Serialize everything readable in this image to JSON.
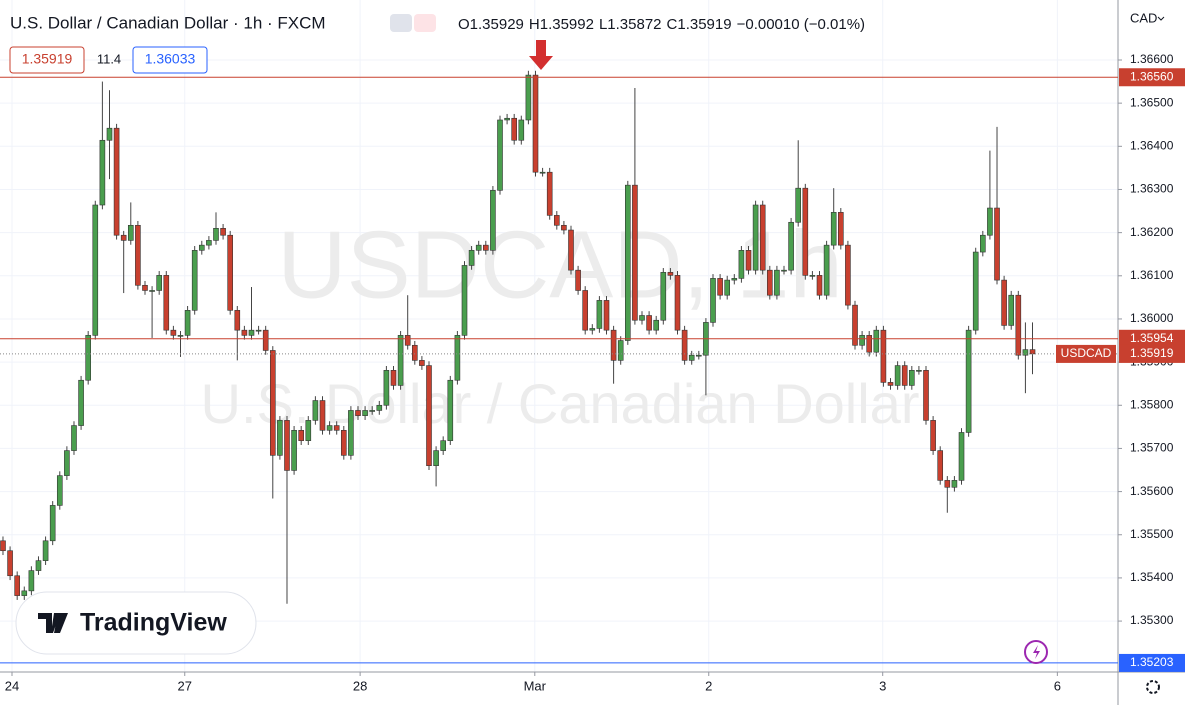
{
  "header": {
    "title": "U.S. Dollar / Canadian Dollar · 1h · FXCM",
    "ohlc": [
      "O1.35929",
      "H1.35992",
      "L1.35872",
      "C1.35919",
      "−0.00010 (−0.01%)"
    ],
    "buttons": [
      "1.35919",
      "11.4",
      "1.36033"
    ],
    "currency": "CAD"
  },
  "watermark": {
    "symbol": "USDCAD, 1h",
    "description": "U.S. Dollar / Canadian Dollar"
  },
  "logo": "TradingView",
  "chart_data": {
    "type": "candlestick",
    "up_color": "#4a9e4e",
    "down_color": "#c8402f",
    "xlim": [
      -0.42,
      157.04
    ],
    "ylim": [
      1.35182,
      1.36739
    ],
    "xticks": [
      {
        "value": 1.27,
        "label": "24"
      },
      {
        "value": 25.6,
        "label": "27"
      },
      {
        "value": 50.3,
        "label": "28"
      },
      {
        "value": 74.9,
        "label": "Mar"
      },
      {
        "value": 99.4,
        "label": "2"
      },
      {
        "value": 123.9,
        "label": "3"
      },
      {
        "value": 148.5,
        "label": "6"
      }
    ],
    "yticks": [
      {
        "value": 1.353,
        "label": "1.35300"
      },
      {
        "value": 1.354,
        "label": "1.35400"
      },
      {
        "value": 1.355,
        "label": "1.35500"
      },
      {
        "value": 1.356,
        "label": "1.35600"
      },
      {
        "value": 1.357,
        "label": "1.35700"
      },
      {
        "value": 1.358,
        "label": "1.35800"
      },
      {
        "value": 1.359,
        "label": "1.35900"
      },
      {
        "value": 1.36,
        "label": "1.36000"
      },
      {
        "value": 1.361,
        "label": "1.36100"
      },
      {
        "value": 1.362,
        "label": "1.36200"
      },
      {
        "value": 1.363,
        "label": "1.36300"
      },
      {
        "value": 1.364,
        "label": "1.36400"
      },
      {
        "value": 1.365,
        "label": "1.36500"
      },
      {
        "value": 1.366,
        "label": "1.36600"
      }
    ],
    "grid": true,
    "levels": [
      {
        "value": 1.3656,
        "label": "1.36560",
        "color": "#c8402f"
      },
      {
        "value": 1.35954,
        "label": "1.35954",
        "color": "#c8402f"
      },
      {
        "value": 1.35203,
        "label": "1.35203",
        "color": "#2962ff"
      }
    ],
    "last_price": {
      "name": "USDCAD",
      "value": 1.35919,
      "label": "1.35919",
      "color": "#c8402f"
    },
    "x": [
      0,
      1,
      2,
      3,
      4,
      5,
      6,
      7,
      8,
      9,
      10,
      11,
      12,
      13,
      14,
      15,
      16,
      17,
      18,
      19,
      20,
      21,
      22,
      23,
      24,
      25,
      26,
      27,
      28,
      29,
      30,
      31,
      32,
      33,
      34,
      35,
      36,
      37,
      38,
      39,
      40,
      41,
      42,
      43,
      44,
      45,
      46,
      47,
      48,
      49,
      50,
      51,
      52,
      53,
      54,
      55,
      56,
      57,
      58,
      59,
      60,
      61,
      62,
      63,
      64,
      65,
      66,
      67,
      68,
      69,
      70,
      71,
      72,
      73,
      74,
      75,
      76,
      77,
      78,
      79,
      80,
      81,
      82,
      83,
      84,
      85,
      86,
      87,
      88,
      89,
      90,
      91,
      92,
      93,
      94,
      95,
      96,
      97,
      98,
      99,
      100,
      101,
      102,
      103,
      104,
      105,
      106,
      107,
      108,
      109,
      110,
      111,
      112,
      113,
      114,
      115,
      116,
      117,
      118,
      119,
      120,
      121,
      122,
      123,
      124,
      125,
      126,
      127,
      128,
      129,
      130,
      131,
      132,
      133,
      134,
      135,
      136,
      137,
      138,
      139,
      140,
      141,
      142,
      143,
      144,
      145
    ],
    "open": [
      1.35486,
      1.35463,
      1.35405,
      1.35359,
      1.3537,
      1.35417,
      1.3544,
      1.35486,
      1.35568,
      1.35637,
      1.35695,
      1.35753,
      1.35858,
      1.35962,
      1.36264,
      1.36414,
      1.36442,
      1.36194,
      1.36182,
      1.36217,
      1.36078,
      1.36066,
      1.36066,
      1.36101,
      1.35974,
      1.35962,
      1.35962,
      1.3602,
      1.36159,
      1.36171,
      1.36182,
      1.3621,
      1.36194,
      1.3602,
      1.35974,
      1.35962,
      1.35974,
      1.35974,
      1.35927,
      1.35684,
      1.35765,
      1.35649,
      1.35742,
      1.35718,
      1.35765,
      1.35811,
      1.35742,
      1.35753,
      1.35742,
      1.35684,
      1.35788,
      1.35776,
      1.35788,
      1.35788,
      1.358,
      1.35881,
      1.35846,
      1.35962,
      1.35939,
      1.35904,
      1.35892,
      1.3566,
      1.35695,
      1.35718,
      1.35858,
      1.35962,
      1.36124,
      1.36159,
      1.36171,
      1.36159,
      1.36298,
      1.36461,
      1.36465,
      1.36414,
      1.36461,
      1.36565,
      1.3634,
      1.3634,
      1.3624,
      1.36217,
      1.36206,
      1.36113,
      1.36066,
      1.35974,
      1.35978,
      1.36043,
      1.35974,
      1.35904,
      1.3595,
      1.3631,
      1.35997,
      1.36008,
      1.35974,
      1.35997,
      1.36108,
      1.36101,
      1.35974,
      1.35904,
      1.35916,
      1.35916,
      1.35992,
      1.36094,
      1.36055,
      1.3609,
      1.36094,
      1.36159,
      1.36113,
      1.36264,
      1.36113,
      1.36055,
      1.36113,
      1.36113,
      1.36224,
      1.36303,
      1.36101,
      1.36101,
      1.36055,
      1.36171,
      1.36247,
      1.36171,
      1.36032,
      1.35939,
      1.35962,
      1.35923,
      1.35974,
      1.35853,
      1.35846,
      1.35892,
      1.35846,
      1.35881,
      1.35881,
      1.35765,
      1.35695,
      1.35626,
      1.3561,
      1.35626,
      1.35737,
      1.35974,
      1.36155,
      1.36194,
      1.36257,
      1.3609,
      1.35985,
      1.36055,
      1.35916,
      1.35929
    ],
    "high": [
      1.35496,
      1.35473,
      1.35415,
      1.3538,
      1.35427,
      1.3545,
      1.35496,
      1.35578,
      1.35647,
      1.35705,
      1.35763,
      1.35868,
      1.35972,
      1.36274,
      1.3655,
      1.3653,
      1.36452,
      1.36204,
      1.3627,
      1.36227,
      1.36088,
      1.36076,
      1.36111,
      1.36111,
      1.35984,
      1.35972,
      1.3603,
      1.36169,
      1.36181,
      1.36192,
      1.36247,
      1.3622,
      1.36204,
      1.3603,
      1.35984,
      1.36074,
      1.35984,
      1.35984,
      1.35937,
      1.35775,
      1.35775,
      1.35752,
      1.35752,
      1.35775,
      1.35821,
      1.35821,
      1.35763,
      1.35763,
      1.35752,
      1.35798,
      1.35798,
      1.35798,
      1.35798,
      1.3581,
      1.35891,
      1.35891,
      1.35972,
      1.36055,
      1.35949,
      1.35914,
      1.35902,
      1.35705,
      1.35728,
      1.35868,
      1.35972,
      1.36134,
      1.36169,
      1.36181,
      1.36181,
      1.36308,
      1.36471,
      1.36475,
      1.36475,
      1.36471,
      1.36575,
      1.36575,
      1.3635,
      1.3635,
      1.3625,
      1.36227,
      1.36216,
      1.36123,
      1.36076,
      1.35988,
      1.36053,
      1.36053,
      1.35984,
      1.3596,
      1.3632,
      1.36535,
      1.36018,
      1.36018,
      1.36007,
      1.36118,
      1.36118,
      1.36111,
      1.35984,
      1.35926,
      1.35926,
      1.36002,
      1.36104,
      1.36104,
      1.361,
      1.36104,
      1.36169,
      1.36169,
      1.36274,
      1.36274,
      1.36123,
      1.36123,
      1.36123,
      1.36234,
      1.36414,
      1.36313,
      1.36111,
      1.36111,
      1.36181,
      1.36303,
      1.36257,
      1.36181,
      1.36042,
      1.35972,
      1.35972,
      1.35984,
      1.35984,
      1.35863,
      1.35902,
      1.35902,
      1.35891,
      1.35891,
      1.35891,
      1.35775,
      1.35705,
      1.35636,
      1.35636,
      1.35747,
      1.35984,
      1.36165,
      1.36204,
      1.3639,
      1.36445,
      1.361,
      1.36065,
      1.36065,
      1.35992,
      1.35992
    ],
    "low": [
      1.35453,
      1.35395,
      1.35349,
      1.35349,
      1.3536,
      1.35407,
      1.3543,
      1.35476,
      1.35558,
      1.35627,
      1.35685,
      1.35743,
      1.35848,
      1.35952,
      1.36254,
      1.36324,
      1.36184,
      1.3606,
      1.36172,
      1.36068,
      1.36056,
      1.35956,
      1.36056,
      1.35964,
      1.35952,
      1.35912,
      1.35952,
      1.3601,
      1.36149,
      1.36161,
      1.36172,
      1.36184,
      1.3601,
      1.35904,
      1.35952,
      1.35952,
      1.35964,
      1.35917,
      1.35584,
      1.35674,
      1.3534,
      1.35639,
      1.35708,
      1.35708,
      1.35755,
      1.35732,
      1.35732,
      1.35732,
      1.35674,
      1.35674,
      1.35766,
      1.35766,
      1.35778,
      1.35778,
      1.3579,
      1.35836,
      1.35836,
      1.35929,
      1.35894,
      1.35882,
      1.3565,
      1.35612,
      1.35685,
      1.35708,
      1.35848,
      1.35952,
      1.36114,
      1.36149,
      1.36149,
      1.36149,
      1.36288,
      1.36451,
      1.36404,
      1.36404,
      1.36451,
      1.3633,
      1.3633,
      1.3623,
      1.36207,
      1.36196,
      1.36103,
      1.36056,
      1.35964,
      1.35964,
      1.35968,
      1.35964,
      1.3585,
      1.35894,
      1.3594,
      1.35987,
      1.35987,
      1.35964,
      1.35964,
      1.35987,
      1.36091,
      1.35964,
      1.35894,
      1.35894,
      1.35906,
      1.35823,
      1.35982,
      1.36045,
      1.36045,
      1.3608,
      1.36084,
      1.36103,
      1.36103,
      1.36103,
      1.36045,
      1.36045,
      1.36103,
      1.36103,
      1.36214,
      1.36091,
      1.36091,
      1.36045,
      1.36045,
      1.36161,
      1.36161,
      1.36022,
      1.35929,
      1.35929,
      1.35913,
      1.35913,
      1.35843,
      1.35836,
      1.35836,
      1.35836,
      1.35836,
      1.35871,
      1.35755,
      1.35685,
      1.35616,
      1.35551,
      1.356,
      1.35616,
      1.35727,
      1.35964,
      1.36145,
      1.36184,
      1.3608,
      1.35975,
      1.35975,
      1.35906,
      1.35828,
      1.35872
    ],
    "close": [
      1.35463,
      1.35405,
      1.35359,
      1.3537,
      1.35417,
      1.3544,
      1.35486,
      1.35568,
      1.35637,
      1.35695,
      1.35753,
      1.35858,
      1.35962,
      1.36264,
      1.36414,
      1.36442,
      1.36194,
      1.36182,
      1.36217,
      1.36078,
      1.36066,
      1.36066,
      1.36101,
      1.35974,
      1.35962,
      1.35962,
      1.3602,
      1.36159,
      1.36171,
      1.36182,
      1.3621,
      1.36194,
      1.3602,
      1.35974,
      1.35962,
      1.35974,
      1.35974,
      1.35927,
      1.35684,
      1.35765,
      1.35649,
      1.35742,
      1.35718,
      1.35765,
      1.35811,
      1.35742,
      1.35753,
      1.35742,
      1.35684,
      1.35788,
      1.35776,
      1.35788,
      1.35788,
      1.358,
      1.35881,
      1.35846,
      1.35962,
      1.35939,
      1.35904,
      1.35892,
      1.3566,
      1.35695,
      1.35718,
      1.35858,
      1.35962,
      1.36124,
      1.36159,
      1.36171,
      1.36159,
      1.36298,
      1.36461,
      1.36465,
      1.36414,
      1.36461,
      1.36565,
      1.3634,
      1.3634,
      1.3624,
      1.36217,
      1.36206,
      1.36113,
      1.36066,
      1.35974,
      1.35978,
      1.36043,
      1.35974,
      1.35904,
      1.3595,
      1.3631,
      1.35997,
      1.36008,
      1.35974,
      1.35997,
      1.36108,
      1.36101,
      1.35974,
      1.35904,
      1.35916,
      1.35916,
      1.35992,
      1.36094,
      1.36055,
      1.3609,
      1.36094,
      1.36159,
      1.36113,
      1.36264,
      1.36113,
      1.36055,
      1.36113,
      1.36113,
      1.36224,
      1.36303,
      1.36101,
      1.36101,
      1.36055,
      1.36171,
      1.36247,
      1.36171,
      1.36032,
      1.35939,
      1.35962,
      1.35923,
      1.35974,
      1.35853,
      1.35846,
      1.35892,
      1.35846,
      1.35881,
      1.35881,
      1.35765,
      1.35695,
      1.35626,
      1.3561,
      1.35626,
      1.35737,
      1.35974,
      1.36155,
      1.36194,
      1.36257,
      1.3609,
      1.35985,
      1.36055,
      1.35916,
      1.35929,
      1.35919
    ]
  }
}
